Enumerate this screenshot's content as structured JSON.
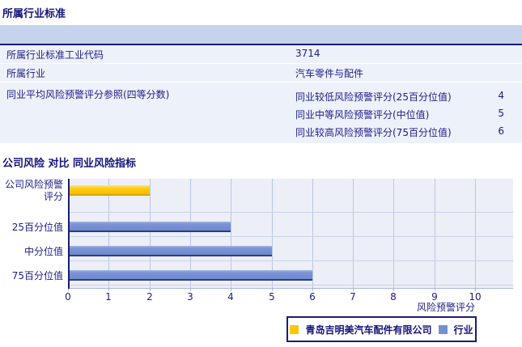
{
  "section1": {
    "title": "所属行业标准",
    "rows": [
      {
        "label": "所属行业标准工业代码",
        "value": "3714"
      },
      {
        "label": "所属行业",
        "value": "汽车零件与配件"
      }
    ],
    "group_row": {
      "label": "同业平均风险预警评分参照(四等分数)",
      "sub_rows": [
        {
          "label": "同业较低风险预警评分(25百分位值)",
          "value": "4"
        },
        {
          "label": "同业中等风险预警评分(中位值)",
          "value": "5"
        },
        {
          "label": "同业较高风险预警评分(75百分位值)",
          "value": "6"
        }
      ]
    }
  },
  "section2": {
    "title": "公司风险 对比 同业风险指标"
  },
  "chart_data": {
    "type": "bar",
    "orientation": "horizontal",
    "title": "",
    "categories": [
      "公司风险预警评分",
      "25百分位值",
      "中分位值",
      "75百分位值"
    ],
    "series": [
      {
        "name": "青岛吉明美汽车配件有限公司",
        "color": "#fdc705",
        "values": [
          2,
          null,
          null,
          null
        ]
      },
      {
        "name": "行业",
        "color": "#7590d2",
        "values": [
          null,
          4,
          5,
          6
        ]
      }
    ],
    "xlabel": "风险预警评分",
    "ylabel": "",
    "xlim": [
      0,
      10
    ],
    "xticks": [
      0,
      1,
      2,
      3,
      4,
      5,
      6,
      7,
      8,
      9,
      10
    ],
    "grid": true,
    "legend_position": "bottom"
  },
  "colors": {
    "accent_navy": "#1b1b7a",
    "company_bar": "#fdc705",
    "industry_bar": "#7590d2",
    "table_header_band": "#c6d3ec",
    "row_bg": "#edf1f9",
    "plot_bg": "#edeff6"
  }
}
